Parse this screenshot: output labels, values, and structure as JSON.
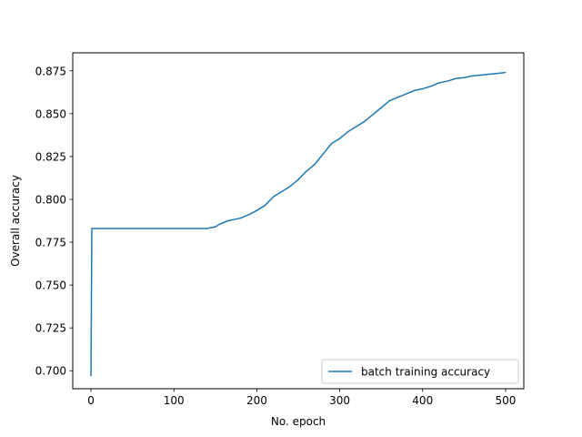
{
  "chart_data": {
    "type": "line",
    "title": "",
    "xlabel": "No. epoch",
    "ylabel": "Overall accuracy",
    "xlim": [
      -22,
      522
    ],
    "ylim": [
      0.6895,
      0.8855
    ],
    "xticks": [
      0,
      100,
      200,
      300,
      400,
      500
    ],
    "yticks": [
      0.7,
      0.725,
      0.75,
      0.775,
      0.8,
      0.825,
      0.85,
      0.875
    ],
    "xtick_labels": [
      "0",
      "100",
      "200",
      "300",
      "400",
      "500"
    ],
    "ytick_labels": [
      "0.700",
      "0.725",
      "0.750",
      "0.775",
      "0.800",
      "0.825",
      "0.850",
      "0.875"
    ],
    "grid": false,
    "legend_position": "lower-right",
    "series": [
      {
        "name": "batch training accuracy",
        "color": "#1f77b4",
        "x": [
          0,
          1,
          10,
          50,
          100,
          140,
          145,
          150,
          155,
          160,
          165,
          170,
          180,
          190,
          200,
          210,
          220,
          230,
          240,
          250,
          260,
          270,
          280,
          290,
          300,
          310,
          320,
          330,
          340,
          350,
          360,
          370,
          380,
          390,
          400,
          410,
          420,
          430,
          440,
          450,
          460,
          470,
          480,
          490,
          500
        ],
        "y": [
          0.697,
          0.783,
          0.783,
          0.783,
          0.783,
          0.783,
          0.7835,
          0.784,
          0.7855,
          0.7865,
          0.7875,
          0.788,
          0.789,
          0.791,
          0.7935,
          0.7965,
          0.8015,
          0.8045,
          0.8075,
          0.8115,
          0.8165,
          0.8205,
          0.8265,
          0.8325,
          0.8355,
          0.8395,
          0.8425,
          0.8455,
          0.8495,
          0.8535,
          0.8575,
          0.8595,
          0.8615,
          0.8635,
          0.8645,
          0.866,
          0.868,
          0.869,
          0.8705,
          0.871,
          0.872,
          0.8725,
          0.873,
          0.8735,
          0.874
        ]
      }
    ]
  }
}
